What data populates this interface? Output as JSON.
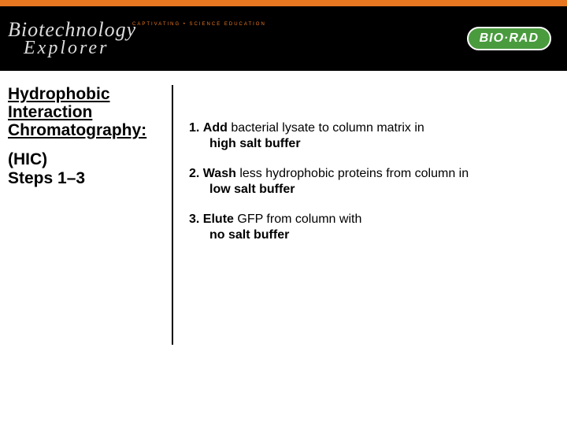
{
  "header": {
    "accent_color": "#e87722",
    "bg_color": "#000000",
    "logo_top": "Biotechnology",
    "logo_bottom": "Explorer",
    "tagline": "CAPTIVATING • SCIENCE EDUCATION",
    "biorad": "BIO·RAD"
  },
  "left": {
    "title_line1": "Hydrophobic",
    "title_line2": "Interaction",
    "title_line3": "Chromatography:",
    "sub_line1": "(HIC)",
    "sub_line2": "Steps 1–3"
  },
  "steps": [
    {
      "num": "1.",
      "bold1": "Add",
      "text1": " bacterial lysate to column matrix in",
      "bold2": "high salt buffer"
    },
    {
      "num": "2.",
      "bold1": "Wash",
      "text1": " less hydrophobic proteins from column in",
      "bold2": "low salt buffer"
    },
    {
      "num": "3.",
      "bold1": "Elute",
      "text1": " GFP from column with",
      "bold2": "no salt buffer"
    }
  ]
}
